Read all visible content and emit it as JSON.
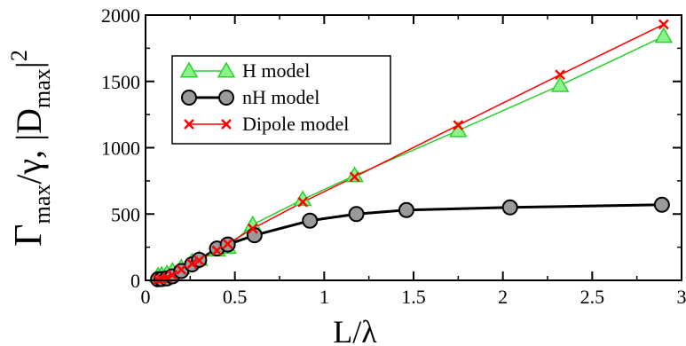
{
  "chart_data": {
    "type": "line",
    "xlabel": {
      "main": "L/",
      "greek": "λ"
    },
    "ylabel": {
      "gamma": "Γ",
      "max1": "max",
      "slash": "/γ,  |D",
      "max2": "max",
      "tail": "|",
      "exp": "2"
    },
    "xlim": [
      0,
      3
    ],
    "ylim": [
      0,
      2000
    ],
    "x_ticks": [
      "0",
      "0.5",
      "1",
      "1.5",
      "2",
      "2.5",
      "3"
    ],
    "y_ticks": [
      "0",
      "500",
      "1000",
      "1500",
      "2000"
    ],
    "grid": false,
    "legend_position": "top-left",
    "series": [
      {
        "name": "H model",
        "color": "#2bd12b",
        "marker": "triangle",
        "x": [
          0.07,
          0.09,
          0.12,
          0.15,
          0.2,
          0.26,
          0.3,
          0.4,
          0.46,
          0.6,
          0.88,
          1.17,
          1.75,
          2.32,
          2.9
        ],
        "y": [
          35,
          40,
          50,
          70,
          95,
          140,
          160,
          230,
          250,
          420,
          610,
          790,
          1130,
          1470,
          1840
        ]
      },
      {
        "name": "nH model",
        "color": "#000000",
        "marker": "circle",
        "x": [
          0.07,
          0.09,
          0.12,
          0.15,
          0.2,
          0.26,
          0.3,
          0.4,
          0.46,
          0.61,
          0.92,
          1.18,
          1.46,
          2.04,
          2.89
        ],
        "y": [
          8,
          10,
          15,
          30,
          70,
          120,
          155,
          240,
          270,
          340,
          450,
          500,
          530,
          550,
          570
        ]
      },
      {
        "name": "Dipole model",
        "color": "#ff0000",
        "marker": "x",
        "x": [
          0.07,
          0.09,
          0.12,
          0.15,
          0.2,
          0.26,
          0.3,
          0.4,
          0.46,
          0.6,
          0.88,
          1.17,
          1.75,
          2.32,
          2.9
        ],
        "y": [
          5,
          10,
          20,
          40,
          80,
          125,
          150,
          225,
          275,
          390,
          590,
          780,
          1170,
          1550,
          1930
        ]
      }
    ]
  }
}
